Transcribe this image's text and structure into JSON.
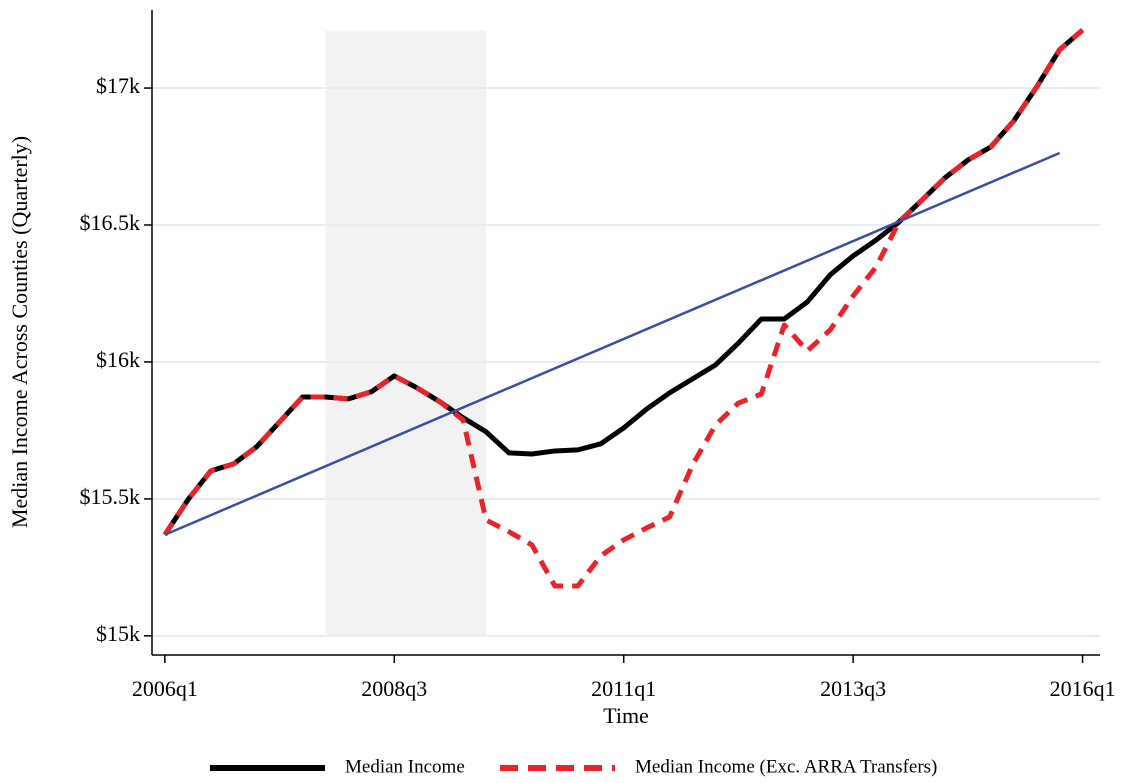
{
  "chart_data": {
    "type": "line",
    "x_label": "Time",
    "y_label": "Median Income Across Counties (Quarterly)",
    "x": [
      2006,
      2006.25,
      2006.5,
      2006.75,
      2007,
      2007.25,
      2007.5,
      2007.75,
      2008,
      2008.25,
      2008.5,
      2008.75,
      2009,
      2009.25,
      2009.5,
      2009.75,
      2010,
      2010.25,
      2010.5,
      2010.75,
      2011,
      2011.25,
      2011.5,
      2011.75,
      2012,
      2012.25,
      2012.5,
      2012.75,
      2013,
      2013.25,
      2013.5,
      2013.75,
      2014,
      2014.25,
      2014.5,
      2014.75,
      2015,
      2015.25,
      2015.5,
      2015.75,
      2016
    ],
    "series": [
      {
        "name": "Median Income",
        "color": "#000000",
        "dash": false,
        "values": [
          15.369,
          15.496,
          15.602,
          15.628,
          15.69,
          15.781,
          15.872,
          15.872,
          15.865,
          15.891,
          15.949,
          15.905,
          15.854,
          15.796,
          15.745,
          15.668,
          15.664,
          15.675,
          15.679,
          15.701,
          15.759,
          15.828,
          15.887,
          15.938,
          15.989,
          16.069,
          16.157,
          16.157,
          16.219,
          16.318,
          16.387,
          16.445,
          16.511,
          16.591,
          16.672,
          16.737,
          16.785,
          16.88,
          17.004,
          17.14,
          17.212
        ]
      },
      {
        "name": "Median Income (Exc. ARRA Transfers)",
        "color": "#e8242b",
        "dash": true,
        "values": [
          15.369,
          15.496,
          15.602,
          15.628,
          15.69,
          15.781,
          15.872,
          15.872,
          15.865,
          15.891,
          15.949,
          15.905,
          15.854,
          15.788,
          15.423,
          15.38,
          15.332,
          15.182,
          15.182,
          15.292,
          15.35,
          15.394,
          15.434,
          15.624,
          15.77,
          15.85,
          15.883,
          16.135,
          16.04,
          16.117,
          16.241,
          16.347,
          16.511,
          16.591,
          16.672,
          16.737,
          16.785,
          16.88,
          17.004,
          17.14,
          17.212
        ]
      }
    ],
    "trend": {
      "x": [
        2006,
        2015.75
      ],
      "values": [
        15.369,
        16.763
      ],
      "color": "#3a4fa3"
    },
    "shade": {
      "x": [
        2007.75,
        2009.5
      ],
      "y": [
        15,
        17.21
      ],
      "color": "#f2f2f2"
    },
    "xlim": [
      2005.86,
      2016.19
    ],
    "ylim": [
      14.93,
      17.285
    ],
    "xticks": [
      {
        "value": 2006,
        "label": "2006q1"
      },
      {
        "value": 2008.5,
        "label": "2008q3"
      },
      {
        "value": 2011,
        "label": "2011q1"
      },
      {
        "value": 2013.5,
        "label": "2013q3"
      },
      {
        "value": 2016,
        "label": "2016q1"
      }
    ],
    "yticks": [
      {
        "value": 15,
        "label": "$15k"
      },
      {
        "value": 15.5,
        "label": "$15.5k"
      },
      {
        "value": 16,
        "label": "$16k"
      },
      {
        "value": 16.5,
        "label": "$16.5k"
      },
      {
        "value": 17,
        "label": "$17k"
      }
    ],
    "grid": true
  }
}
